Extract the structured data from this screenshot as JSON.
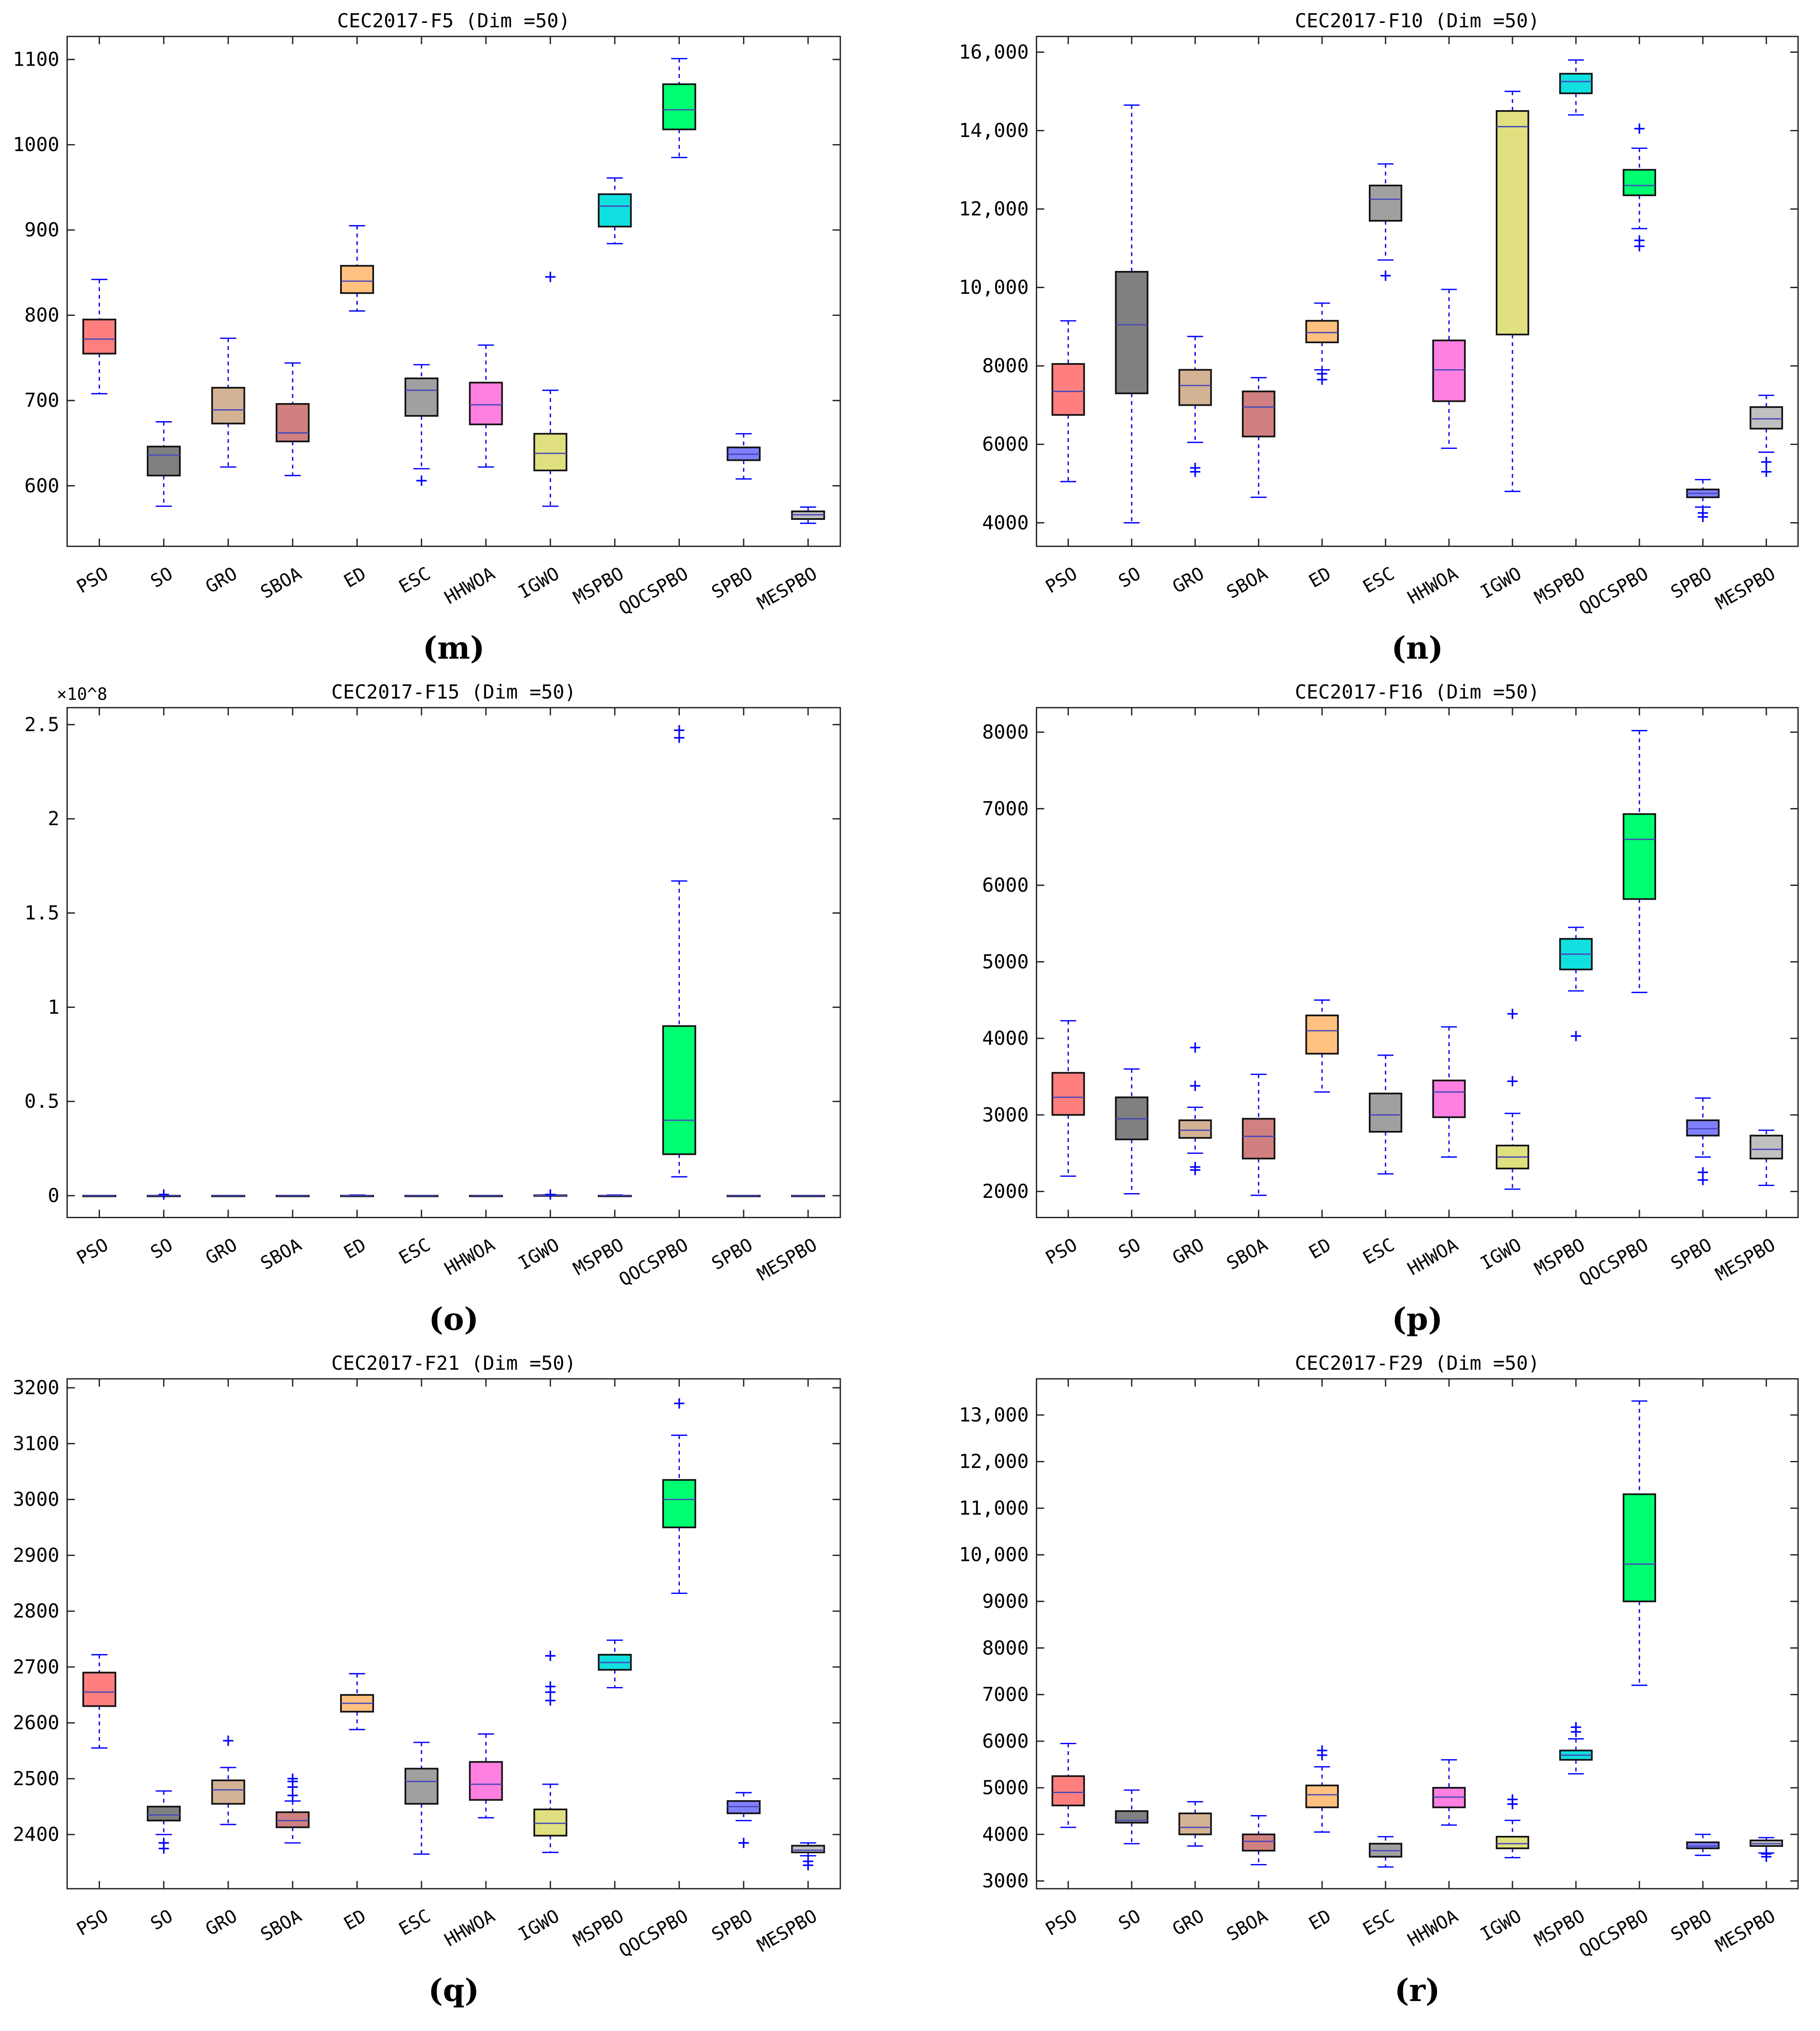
{
  "categories": [
    "PSO",
    "SO",
    "GRO",
    "SBOA",
    "ED",
    "ESC",
    "HHWOA",
    "IGWO",
    "MSPBO",
    "QOCSPBO",
    "SPBO",
    "MESPBO"
  ],
  "colors": {
    "box_fills": [
      "#ff7f7f",
      "#808080",
      "#d4b294",
      "#d08080",
      "#ffc080",
      "#a0a0a0",
      "#ff80e0",
      "#e0e080",
      "#10e0e0",
      "#00ff70",
      "#8080ff",
      "#c0c0c0"
    ],
    "whisker": "#0000ff",
    "median": "#4848b8",
    "outlier": "#0000ff"
  },
  "chart_data": [
    {
      "type": "boxplot",
      "title": "CEC2017-F5 (Dim =50)",
      "panel_label": "(m)",
      "ylim": [
        529,
        1127
      ],
      "yticks": [
        600,
        700,
        800,
        900,
        1000,
        1100
      ],
      "ytick_labels": [
        "600",
        "700",
        "800",
        "900",
        "1000",
        "1100"
      ],
      "stats": [
        [
          708,
          755,
          772,
          795,
          842
        ],
        [
          576,
          612,
          636,
          646,
          675
        ],
        [
          622,
          673,
          689,
          715,
          773
        ],
        [
          612,
          652,
          662,
          696,
          744
        ],
        [
          805,
          826,
          840,
          858,
          905
        ],
        [
          620,
          682,
          712,
          726,
          742
        ],
        [
          622,
          672,
          695,
          721,
          765
        ],
        [
          576,
          618,
          638,
          661,
          712
        ],
        [
          884,
          904,
          928,
          942,
          961
        ],
        [
          985,
          1018,
          1041,
          1071,
          1101
        ],
        [
          608,
          630,
          637,
          645,
          661
        ],
        [
          556,
          561,
          566,
          570,
          575
        ]
      ],
      "outliers": [
        [],
        [],
        [],
        [],
        [],
        [
          606
        ],
        [],
        [
          845
        ],
        [],
        [],
        [],
        []
      ]
    },
    {
      "type": "boxplot",
      "title": "CEC2017-F10 (Dim =50)",
      "panel_label": "(n)",
      "ylim": [
        3400,
        16400
      ],
      "yticks": [
        4000,
        6000,
        8000,
        10000,
        12000,
        14000,
        16000
      ],
      "ytick_labels": [
        "4000",
        "6000",
        "8000",
        "10,000",
        "12,000",
        "14,000",
        "16,000"
      ],
      "stats": [
        [
          5050,
          6750,
          7350,
          8050,
          9150
        ],
        [
          4000,
          7300,
          9050,
          10400,
          14650
        ],
        [
          6050,
          7000,
          7500,
          7900,
          8750
        ],
        [
          4650,
          6200,
          6950,
          7350,
          7700
        ],
        [
          7900,
          8600,
          8850,
          9150,
          9600
        ],
        [
          10700,
          11700,
          12250,
          12600,
          13150
        ],
        [
          5900,
          7100,
          7900,
          8650,
          9950
        ],
        [
          4800,
          8800,
          14100,
          14500,
          15000
        ],
        [
          14400,
          14950,
          15250,
          15450,
          15800
        ],
        [
          11500,
          12350,
          12600,
          13000,
          13550
        ],
        [
          4400,
          4650,
          4750,
          4850,
          5100
        ],
        [
          5800,
          6400,
          6650,
          6950,
          7250
        ]
      ],
      "outliers": [
        [],
        [],
        [
          5400,
          5300
        ],
        [],
        [
          7800,
          7650
        ],
        [
          10300
        ],
        [],
        [],
        [],
        [
          14050,
          11200,
          11050
        ],
        [
          4250,
          4150
        ],
        [
          5550,
          5300
        ]
      ]
    },
    {
      "type": "boxplot",
      "title": "CEC2017-F15 (Dim =50)",
      "panel_label": "(o)",
      "exponent_label": "×10^8",
      "ylim": [
        -0.116,
        2.59
      ],
      "yticks": [
        0,
        0.5,
        1,
        1.5,
        2,
        2.5
      ],
      "ytick_labels": [
        "0",
        "0.5",
        "1",
        "1.5",
        "2",
        "2.5"
      ],
      "stats": [
        [
          0,
          0,
          0,
          0,
          0
        ],
        [
          0,
          0,
          0,
          0,
          0
        ],
        [
          0,
          0,
          0,
          0,
          0
        ],
        [
          0,
          0,
          0,
          0,
          0
        ],
        [
          0,
          0,
          0,
          0,
          0.003
        ],
        [
          0,
          0,
          0,
          0,
          0
        ],
        [
          0,
          0,
          0,
          0,
          0
        ],
        [
          0,
          0,
          0.001,
          0.002,
          0.004
        ],
        [
          0,
          0,
          0,
          0,
          0.003
        ],
        [
          0.1,
          0.22,
          0.4,
          0.9,
          1.67
        ],
        [
          0,
          0,
          0,
          0,
          0
        ],
        [
          0,
          0,
          0,
          0,
          0
        ]
      ],
      "outliers": [
        [],
        [
          0.006
        ],
        [],
        [],
        [],
        [],
        [],
        [
          0.006
        ],
        [],
        [
          2.43,
          2.47
        ],
        [],
        []
      ]
    },
    {
      "type": "boxplot",
      "title": "CEC2017-F16 (Dim =50)",
      "panel_label": "(p)",
      "ylim": [
        1660,
        8320
      ],
      "yticks": [
        2000,
        3000,
        4000,
        5000,
        6000,
        7000,
        8000
      ],
      "ytick_labels": [
        "2000",
        "3000",
        "4000",
        "5000",
        "6000",
        "7000",
        "8000"
      ],
      "stats": [
        [
          2200,
          3000,
          3230,
          3550,
          4230
        ],
        [
          1970,
          2680,
          2950,
          3230,
          3600
        ],
        [
          2500,
          2700,
          2800,
          2930,
          3100
        ],
        [
          1950,
          2430,
          2720,
          2950,
          3530
        ],
        [
          3300,
          3800,
          4100,
          4300,
          4500
        ],
        [
          2230,
          2780,
          3000,
          3280,
          3780
        ],
        [
          2450,
          2970,
          3300,
          3450,
          4150
        ],
        [
          2030,
          2300,
          2450,
          2600,
          3020
        ],
        [
          4620,
          4900,
          5100,
          5300,
          5450
        ],
        [
          4600,
          5820,
          6600,
          6930,
          8020
        ],
        [
          2450,
          2730,
          2820,
          2930,
          3220
        ],
        [
          2080,
          2430,
          2550,
          2730,
          2800
        ]
      ],
      "outliers": [
        [],
        [],
        [
          3380,
          3880,
          2320,
          2280
        ],
        [],
        [],
        [],
        [],
        [
          3440,
          4320
        ],
        [
          4030
        ],
        [],
        [
          2250,
          2150
        ],
        []
      ]
    },
    {
      "type": "boxplot",
      "title": "CEC2017-F21 (Dim =50)",
      "panel_label": "(q)",
      "ylim": [
        2303,
        3216
      ],
      "yticks": [
        2400,
        2500,
        2600,
        2700,
        2800,
        2900,
        3000,
        3100,
        3200
      ],
      "ytick_labels": [
        "2400",
        "2500",
        "2600",
        "2700",
        "2800",
        "2900",
        "3000",
        "3100",
        "3200"
      ],
      "stats": [
        [
          2555,
          2630,
          2655,
          2690,
          2722
        ],
        [
          2400,
          2425,
          2435,
          2450,
          2478
        ],
        [
          2418,
          2455,
          2480,
          2497,
          2520
        ],
        [
          2385,
          2413,
          2425,
          2440,
          2460
        ],
        [
          2588,
          2620,
          2635,
          2650,
          2688
        ],
        [
          2365,
          2455,
          2495,
          2518,
          2565
        ],
        [
          2430,
          2462,
          2490,
          2530,
          2580
        ],
        [
          2368,
          2398,
          2420,
          2445,
          2490
        ],
        [
          2663,
          2695,
          2708,
          2722,
          2748
        ],
        [
          2832,
          2950,
          3000,
          3035,
          3115
        ],
        [
          2425,
          2438,
          2450,
          2460,
          2475
        ],
        [
          2362,
          2368,
          2372,
          2380,
          2385
        ]
      ],
      "outliers": [
        [],
        [
          2385,
          2375
        ],
        [
          2568
        ],
        [
          2470,
          2485,
          2495,
          2500
        ],
        [],
        [],
        [],
        [
          2640,
          2655,
          2665,
          2720
        ],
        [],
        [
          3172
        ],
        [
          2385
        ],
        [
          2345,
          2352
        ]
      ]
    },
    {
      "type": "boxplot",
      "title": "CEC2017-F29 (Dim =50)",
      "panel_label": "(r)",
      "ylim": [
        2834,
        13776
      ],
      "yticks": [
        3000,
        4000,
        5000,
        6000,
        7000,
        8000,
        9000,
        10000,
        11000,
        12000,
        13000
      ],
      "ytick_labels": [
        "3000",
        "4000",
        "5000",
        "6000",
        "7000",
        "8000",
        "9000",
        "10,000",
        "11,000",
        "12,000",
        "13,000"
      ],
      "stats": [
        [
          4150,
          4620,
          4900,
          5250,
          5950
        ],
        [
          3800,
          4250,
          4300,
          4500,
          4950
        ],
        [
          3750,
          4000,
          4150,
          4450,
          4700
        ],
        [
          3350,
          3650,
          3850,
          4000,
          4400
        ],
        [
          4050,
          4580,
          4850,
          5050,
          5450
        ],
        [
          3300,
          3520,
          3650,
          3800,
          3950
        ],
        [
          4200,
          4580,
          4800,
          5000,
          5600
        ],
        [
          3500,
          3700,
          3800,
          3950,
          4300
        ],
        [
          5300,
          5600,
          5700,
          5800,
          6050
        ],
        [
          7200,
          9000,
          9800,
          11300,
          13300
        ],
        [
          3550,
          3700,
          3750,
          3830,
          4000
        ],
        [
          3600,
          3750,
          3800,
          3870,
          3930
        ]
      ],
      "outliers": [
        [],
        [],
        [],
        [],
        [
          5700,
          5800
        ],
        [],
        [],
        [
          4650,
          4750
        ],
        [
          6200,
          6300
        ],
        [],
        [],
        [
          3520,
          3580
        ]
      ]
    }
  ]
}
